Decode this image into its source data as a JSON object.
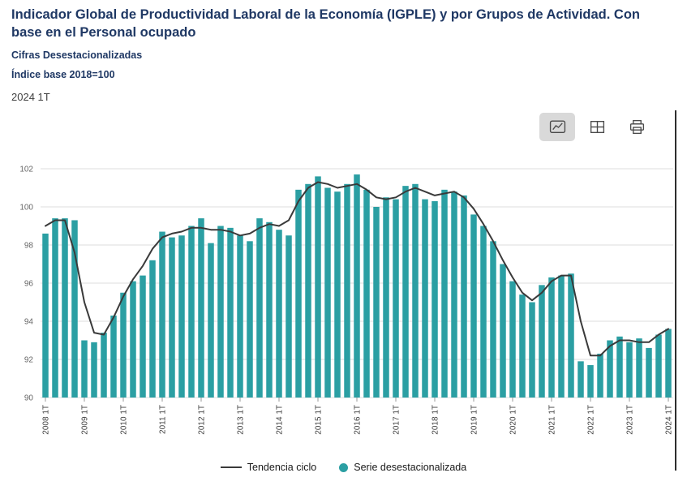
{
  "header": {
    "title": "Indicador Global de Productividad Laboral de la Economía (IGPLE) y por Grupos de Actividad. Con base en el Personal ocupado",
    "subtitle1": "Cifras Desestacionalizadas",
    "subtitle2": "Índice base 2018=100",
    "period": "2024 1T"
  },
  "toolbar": {
    "buttons": [
      {
        "name": "line-chart-view",
        "icon": "line-chart-icon",
        "active": true
      },
      {
        "name": "table-view",
        "icon": "table-icon",
        "active": false
      },
      {
        "name": "print",
        "icon": "printer-icon",
        "active": false
      }
    ]
  },
  "colors": {
    "title": "#1f3864",
    "bar": "#2b9fa3",
    "trend": "#3a3a3a",
    "grid": "#dcdcdc",
    "axis_text": "#666666",
    "toolbar_active_bg": "#d9d9d9"
  },
  "legend": {
    "items": [
      {
        "label": "Tendencia ciclo",
        "type": "line"
      },
      {
        "label": "Serie desestacionalizada",
        "type": "dot"
      }
    ]
  },
  "chart_data": {
    "type": "bar",
    "title": "Indicador Global de Productividad Laboral de la Economía (IGPLE) y por Grupos de Actividad. Con base en el Personal ocupado",
    "subtitle": "Cifras Desestacionalizadas. Índice base 2018=100",
    "xlabel": "",
    "ylabel": "",
    "ylim": [
      90,
      102
    ],
    "yticks": [
      90,
      92,
      94,
      96,
      98,
      100,
      102
    ],
    "grid": true,
    "legend_position": "bottom",
    "tick_every": 4,
    "x": [
      "2008 1T",
      "2008 2T",
      "2008 3T",
      "2008 4T",
      "2009 1T",
      "2009 2T",
      "2009 3T",
      "2009 4T",
      "2010 1T",
      "2010 2T",
      "2010 3T",
      "2010 4T",
      "2011 1T",
      "2011 2T",
      "2011 3T",
      "2011 4T",
      "2012 1T",
      "2012 2T",
      "2012 3T",
      "2012 4T",
      "2013 1T",
      "2013 2T",
      "2013 3T",
      "2013 4T",
      "2014 1T",
      "2014 2T",
      "2014 3T",
      "2014 4T",
      "2015 1T",
      "2015 2T",
      "2015 3T",
      "2015 4T",
      "2016 1T",
      "2016 2T",
      "2016 3T",
      "2016 4T",
      "2017 1T",
      "2017 2T",
      "2017 3T",
      "2017 4T",
      "2018 1T",
      "2018 2T",
      "2018 3T",
      "2018 4T",
      "2019 1T",
      "2019 2T",
      "2019 3T",
      "2019 4T",
      "2020 1T",
      "2020 2T",
      "2020 3T",
      "2020 4T",
      "2021 1T",
      "2021 2T",
      "2021 3T",
      "2021 4T",
      "2022 1T",
      "2022 2T",
      "2022 3T",
      "2022 4T",
      "2023 1T",
      "2023 2T",
      "2023 3T",
      "2023 4T",
      "2024 1T"
    ],
    "series": [
      {
        "name": "Serie desestacionalizada",
        "type": "bar",
        "color": "#2b9fa3",
        "values": [
          98.6,
          99.4,
          99.4,
          99.3,
          93.0,
          92.9,
          93.4,
          94.3,
          95.5,
          96.1,
          96.4,
          97.2,
          98.7,
          98.4,
          98.5,
          99.0,
          99.4,
          98.1,
          99.0,
          98.9,
          98.5,
          98.2,
          99.4,
          99.2,
          98.8,
          98.5,
          100.9,
          101.2,
          101.6,
          101.0,
          100.8,
          101.2,
          101.7,
          100.9,
          100.0,
          100.5,
          100.4,
          101.1,
          101.2,
          100.4,
          100.3,
          100.9,
          100.8,
          100.6,
          99.6,
          99.0,
          98.2,
          97.0,
          96.1,
          95.4,
          95.0,
          95.9,
          96.3,
          96.4,
          96.5,
          91.9,
          91.7,
          92.3,
          93.0,
          93.2,
          92.9,
          93.1,
          92.6,
          93.3,
          93.6
        ]
      },
      {
        "name": "Tendencia ciclo",
        "type": "line",
        "color": "#3a3a3a",
        "values": [
          99.0,
          99.3,
          99.3,
          97.6,
          95.0,
          93.4,
          93.3,
          94.2,
          95.3,
          96.2,
          96.9,
          97.8,
          98.4,
          98.6,
          98.7,
          98.9,
          98.9,
          98.8,
          98.8,
          98.7,
          98.5,
          98.6,
          98.9,
          99.1,
          99.0,
          99.3,
          100.3,
          101.0,
          101.3,
          101.2,
          101.0,
          101.1,
          101.2,
          100.9,
          100.5,
          100.4,
          100.5,
          100.8,
          101.0,
          100.8,
          100.6,
          100.7,
          100.8,
          100.5,
          99.9,
          99.1,
          98.2,
          97.2,
          96.3,
          95.5,
          95.1,
          95.5,
          96.1,
          96.4,
          96.4,
          94.0,
          92.2,
          92.2,
          92.7,
          93.0,
          93.0,
          92.9,
          92.9,
          93.3,
          93.6
        ]
      }
    ]
  }
}
